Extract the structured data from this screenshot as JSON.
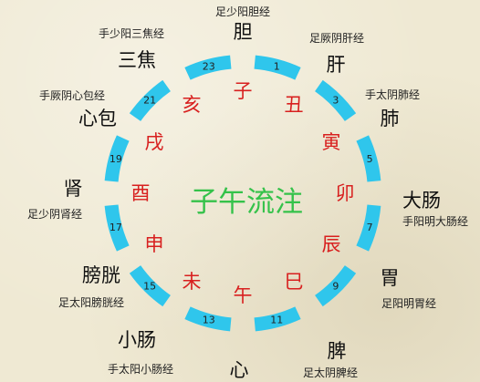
{
  "center_title": "子午流注",
  "colors": {
    "ring": "#2fc6ec",
    "branch": "#d8201f",
    "title": "#35c24a",
    "organ": "#111111",
    "meridian": "#222222",
    "hour": "#222222"
  },
  "branches": [
    "子",
    "丑",
    "寅",
    "卯",
    "辰",
    "巳",
    "午",
    "未",
    "申",
    "酉",
    "戌",
    "亥"
  ],
  "hours": [
    "23",
    "1",
    "3",
    "5",
    "7",
    "9",
    "11",
    "13",
    "15",
    "17",
    "19",
    "21"
  ],
  "segments": [
    {
      "organ": "胆",
      "meridian": "足少阳胆经"
    },
    {
      "organ": "肝",
      "meridian": "足厥阴肝经"
    },
    {
      "organ": "肺",
      "meridian": "手太阴肺经"
    },
    {
      "organ": "大肠",
      "meridian": "手阳明大肠经"
    },
    {
      "organ": "胃",
      "meridian": "足阳明胃经"
    },
    {
      "organ": "脾",
      "meridian": "足太阴脾经"
    },
    {
      "organ": "心",
      "meridian": ""
    },
    {
      "organ": "小肠",
      "meridian": "手太阳小肠经"
    },
    {
      "organ": "膀胱",
      "meridian": "足太阳膀胱经"
    },
    {
      "organ": "肾",
      "meridian": "足少阴肾经"
    },
    {
      "organ": "心包",
      "meridian": "手厥阴心包经"
    },
    {
      "organ": "三焦",
      "meridian": "手少阳三焦经"
    }
  ]
}
